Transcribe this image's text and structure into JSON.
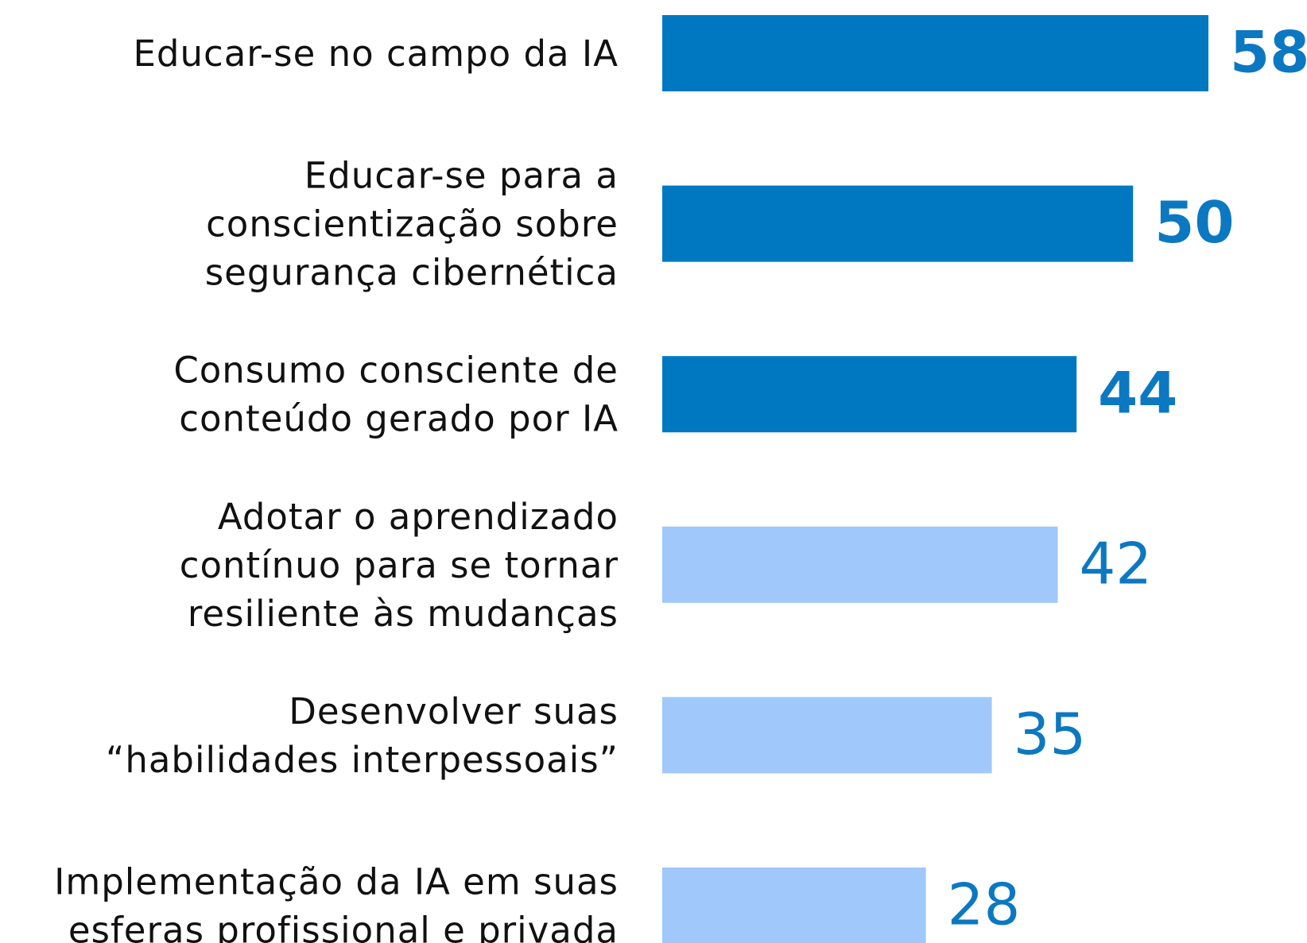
{
  "chart_data": {
    "type": "bar",
    "categories": [
      "Educar-se no campo da IA",
      "Educar-se para a\nconscientização sobre\nsegurança cibernética",
      "Consumo consciente de\nconteúdo gerado por IA",
      "Adotar o aprendizado\ncontínuo para se tornar\nresiliente às mudanças",
      "Desenvolver suas\n“habilidades interpessoais”",
      "Implementação da IA em suas\nesferas profissional e privada"
    ],
    "values": [
      58,
      50,
      44,
      42,
      35,
      28
    ],
    "colors": [
      "#0078c1",
      "#0078c1",
      "#0078c1",
      "#a0c8fb",
      "#a0c8fb",
      "#a0c8fb"
    ],
    "value_label_color": "#0c78c1"
  }
}
